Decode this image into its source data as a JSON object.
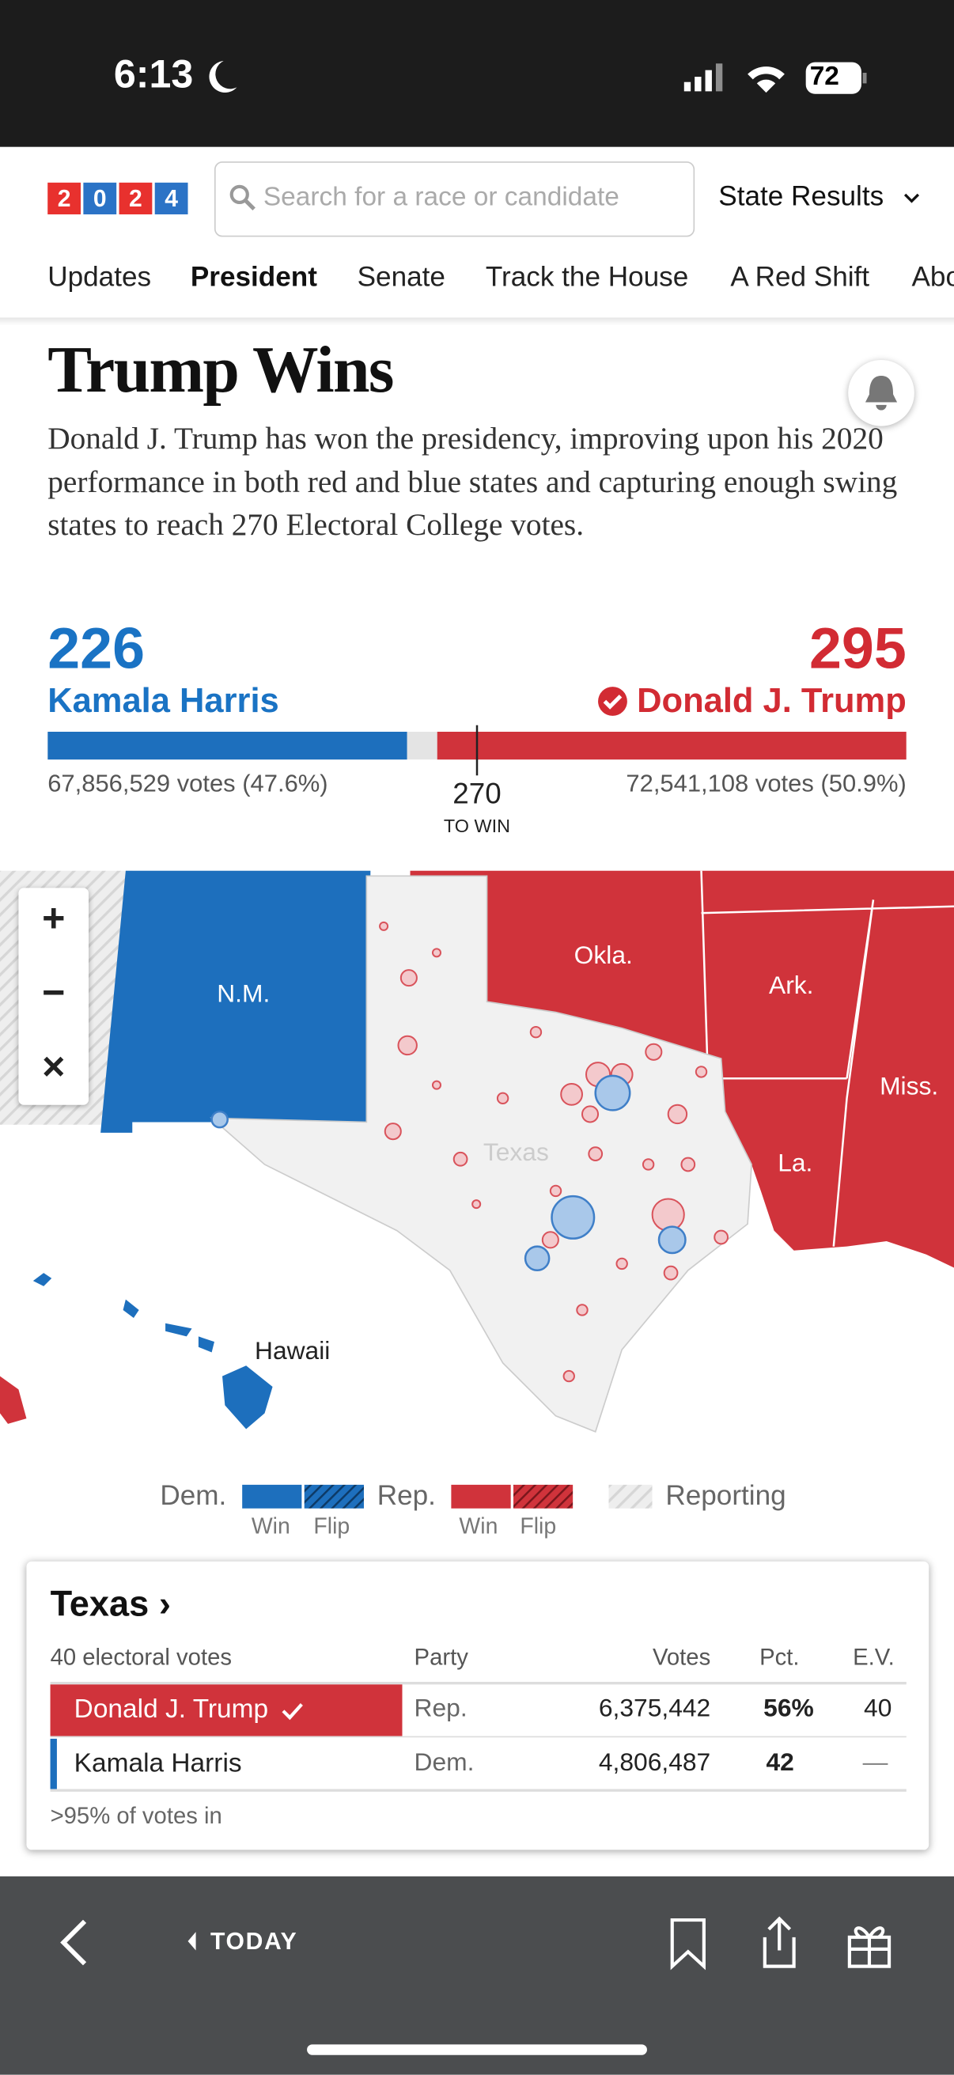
{
  "status_bar": {
    "time": "6:13",
    "battery": "72"
  },
  "header": {
    "logo": [
      "2",
      "0",
      "2",
      "4"
    ],
    "search_placeholder": "Search for a race or candidate",
    "dropdown": "State Results"
  },
  "nav": [
    "Updates",
    "President",
    "Senate",
    "Track the House",
    "A Red Shift",
    "Abo"
  ],
  "headline": {
    "title": "Trump Wins",
    "summary": "Donald J. Trump has won the presidency, improving upon his 2020 performance in both red and blue states and capturing enough swing states to reach 270 Electoral College votes."
  },
  "results": {
    "harris": {
      "electoral_votes": 226,
      "name": "Kamala Harris",
      "votes": "67,856,529 votes (47.6%)"
    },
    "trump": {
      "electoral_votes": 295,
      "name": "Donald J. Trump",
      "votes": "72,541,108 votes (50.9%)"
    },
    "to_win": 270,
    "to_win_label": "TO WIN"
  },
  "map": {
    "labels": [
      "N.M.",
      "Okla.",
      "Ark.",
      "Miss.",
      "La.",
      "Texas",
      "Hawaii"
    ],
    "zoom": [
      "+",
      "−",
      "×"
    ]
  },
  "legend": {
    "dem": "Dem.",
    "rep": "Rep.",
    "win": "Win",
    "flip": "Flip",
    "reporting": "Reporting"
  },
  "card": {
    "title": "Texas ›",
    "subtitle": "40 electoral votes",
    "columns": [
      "Party",
      "Votes",
      "Pct.",
      "E.V."
    ],
    "rows": [
      [
        "Donald J. Trump",
        "Rep.",
        "6,375,442",
        "56%",
        "40"
      ],
      [
        "Kamala Harris",
        "Dem.",
        "4,806,487",
        "42",
        "—"
      ]
    ],
    "footer": ">95% of votes in"
  },
  "toolbar": {
    "today": "TODAY"
  }
}
